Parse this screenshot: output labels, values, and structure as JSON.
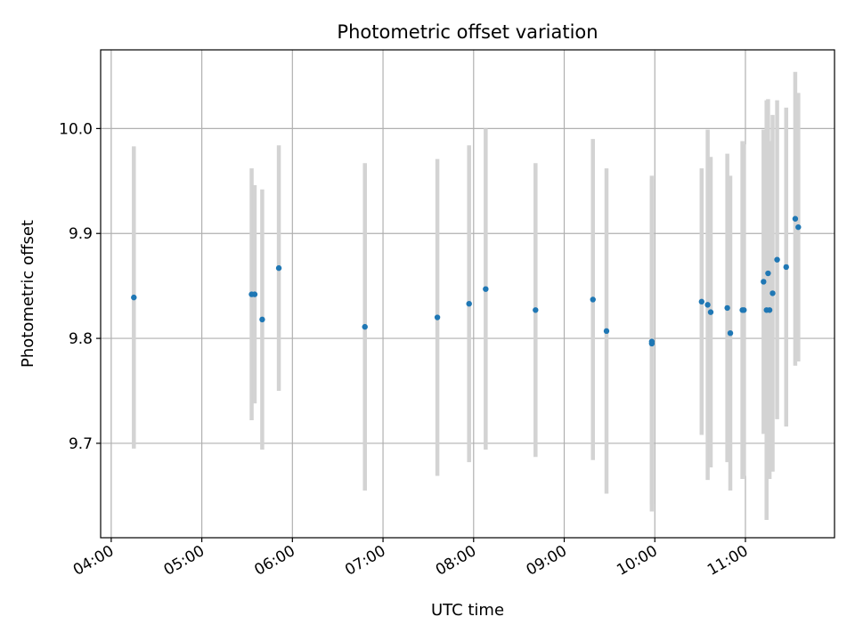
{
  "chart_data": {
    "type": "scatter",
    "title": "Photometric offset variation",
    "xlabel": "UTC time",
    "ylabel": "Photometric offset",
    "x_ticks": [
      "04:00",
      "05:00",
      "06:00",
      "07:00",
      "08:00",
      "09:00",
      "10:00",
      "11:00"
    ],
    "y_ticks": [
      "9.7",
      "9.8",
      "9.9",
      "10.0"
    ],
    "y_tick_values": [
      9.7,
      9.8,
      9.9,
      10.0
    ],
    "xlim": [
      "03:53",
      "11:59"
    ],
    "ylim": [
      9.61,
      10.075
    ],
    "grid": true,
    "x_tick_rotation": 30,
    "colors": {
      "marker": "#1f77b4",
      "errorbar": "#d3d3d3",
      "grid": "#b0b0b0"
    },
    "points": [
      {
        "time": "04:15",
        "offset": 9.839,
        "yerr": 0.144
      },
      {
        "time": "05:33",
        "offset": 9.842,
        "yerr": 0.12
      },
      {
        "time": "05:35",
        "offset": 9.842,
        "yerr": 0.104
      },
      {
        "time": "05:40",
        "offset": 9.818,
        "yerr": 0.124
      },
      {
        "time": "05:51",
        "offset": 9.867,
        "yerr": 0.117
      },
      {
        "time": "06:48",
        "offset": 9.811,
        "yerr": 0.156
      },
      {
        "time": "07:36",
        "offset": 9.82,
        "yerr": 0.151
      },
      {
        "time": "07:57",
        "offset": 9.833,
        "yerr": 0.151
      },
      {
        "time": "08:08",
        "offset": 9.847,
        "yerr": 0.153
      },
      {
        "time": "08:41",
        "offset": 9.827,
        "yerr": 0.14
      },
      {
        "time": "09:19",
        "offset": 9.837,
        "yerr": 0.153
      },
      {
        "time": "09:28",
        "offset": 9.807,
        "yerr": 0.155
      },
      {
        "time": "09:58",
        "offset": 9.795,
        "yerr": 0.16
      },
      {
        "time": "09:58",
        "offset": 9.797,
        "yerr": 0.155
      },
      {
        "time": "10:31",
        "offset": 9.835,
        "yerr": 0.127
      },
      {
        "time": "10:35",
        "offset": 9.832,
        "yerr": 0.167
      },
      {
        "time": "10:37",
        "offset": 9.825,
        "yerr": 0.148
      },
      {
        "time": "10:48",
        "offset": 9.829,
        "yerr": 0.147
      },
      {
        "time": "10:50",
        "offset": 9.805,
        "yerr": 0.15
      },
      {
        "time": "10:58",
        "offset": 9.827,
        "yerr": 0.161
      },
      {
        "time": "10:59",
        "offset": 9.827,
        "yerr": 0.158
      },
      {
        "time": "11:12",
        "offset": 9.854,
        "yerr": 0.145
      },
      {
        "time": "11:14",
        "offset": 9.827,
        "yerr": 0.2
      },
      {
        "time": "11:15",
        "offset": 9.862,
        "yerr": 0.166
      },
      {
        "time": "11:16",
        "offset": 9.827,
        "yerr": 0.161
      },
      {
        "time": "11:18",
        "offset": 9.843,
        "yerr": 0.17
      },
      {
        "time": "11:21",
        "offset": 9.875,
        "yerr": 0.152
      },
      {
        "time": "11:27",
        "offset": 9.868,
        "yerr": 0.152
      },
      {
        "time": "11:33",
        "offset": 9.914,
        "yerr": 0.14
      },
      {
        "time": "11:35",
        "offset": 9.906,
        "yerr": 0.128
      }
    ]
  }
}
